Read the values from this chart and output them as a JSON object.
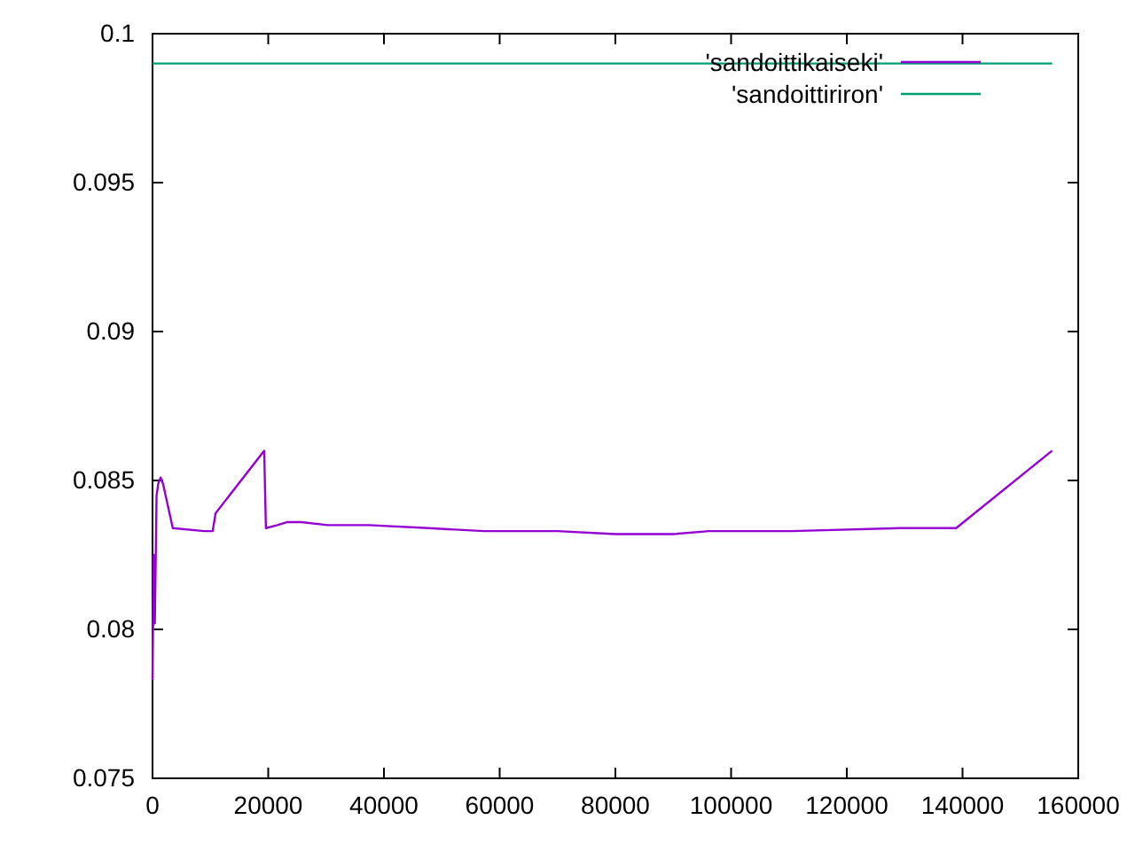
{
  "chart_data": {
    "type": "line",
    "xlim": [
      0,
      160000
    ],
    "ylim": [
      0.075,
      0.1
    ],
    "xticks": [
      0,
      20000,
      40000,
      60000,
      80000,
      100000,
      120000,
      140000,
      160000
    ],
    "yticks": [
      0.075,
      0.08,
      0.085,
      0.09,
      0.095,
      {
        "value": 0.1,
        "label": "0.1"
      }
    ],
    "legend": "top right",
    "grid": false,
    "series": [
      {
        "name": "'sandoittikaiseki'",
        "color": "#9400d3",
        "x": [
          0,
          200,
          400,
          700,
          1000,
          1400,
          1800,
          3500,
          8900,
          10400,
          10900,
          19300,
          19600,
          21600,
          23200,
          25700,
          30300,
          37400,
          47700,
          57300,
          70000,
          80000,
          90000,
          96200,
          110500,
          129300,
          138900,
          155500
        ],
        "values": [
          0.0783,
          0.0825,
          0.0802,
          0.0845,
          0.0849,
          0.0851,
          0.0849,
          0.0834,
          0.0833,
          0.0833,
          0.0839,
          0.086,
          0.0834,
          0.0835,
          0.0836,
          0.0836,
          0.0835,
          0.0835,
          0.0834,
          0.0833,
          0.0833,
          0.0832,
          0.0832,
          0.0833,
          0.0833,
          0.0834,
          0.0834,
          0.086
        ]
      },
      {
        "name": "'sandoittiriron'",
        "color": "#009e73",
        "x": [
          0,
          155500
        ],
        "values": [
          0.099,
          0.099
        ]
      }
    ]
  }
}
